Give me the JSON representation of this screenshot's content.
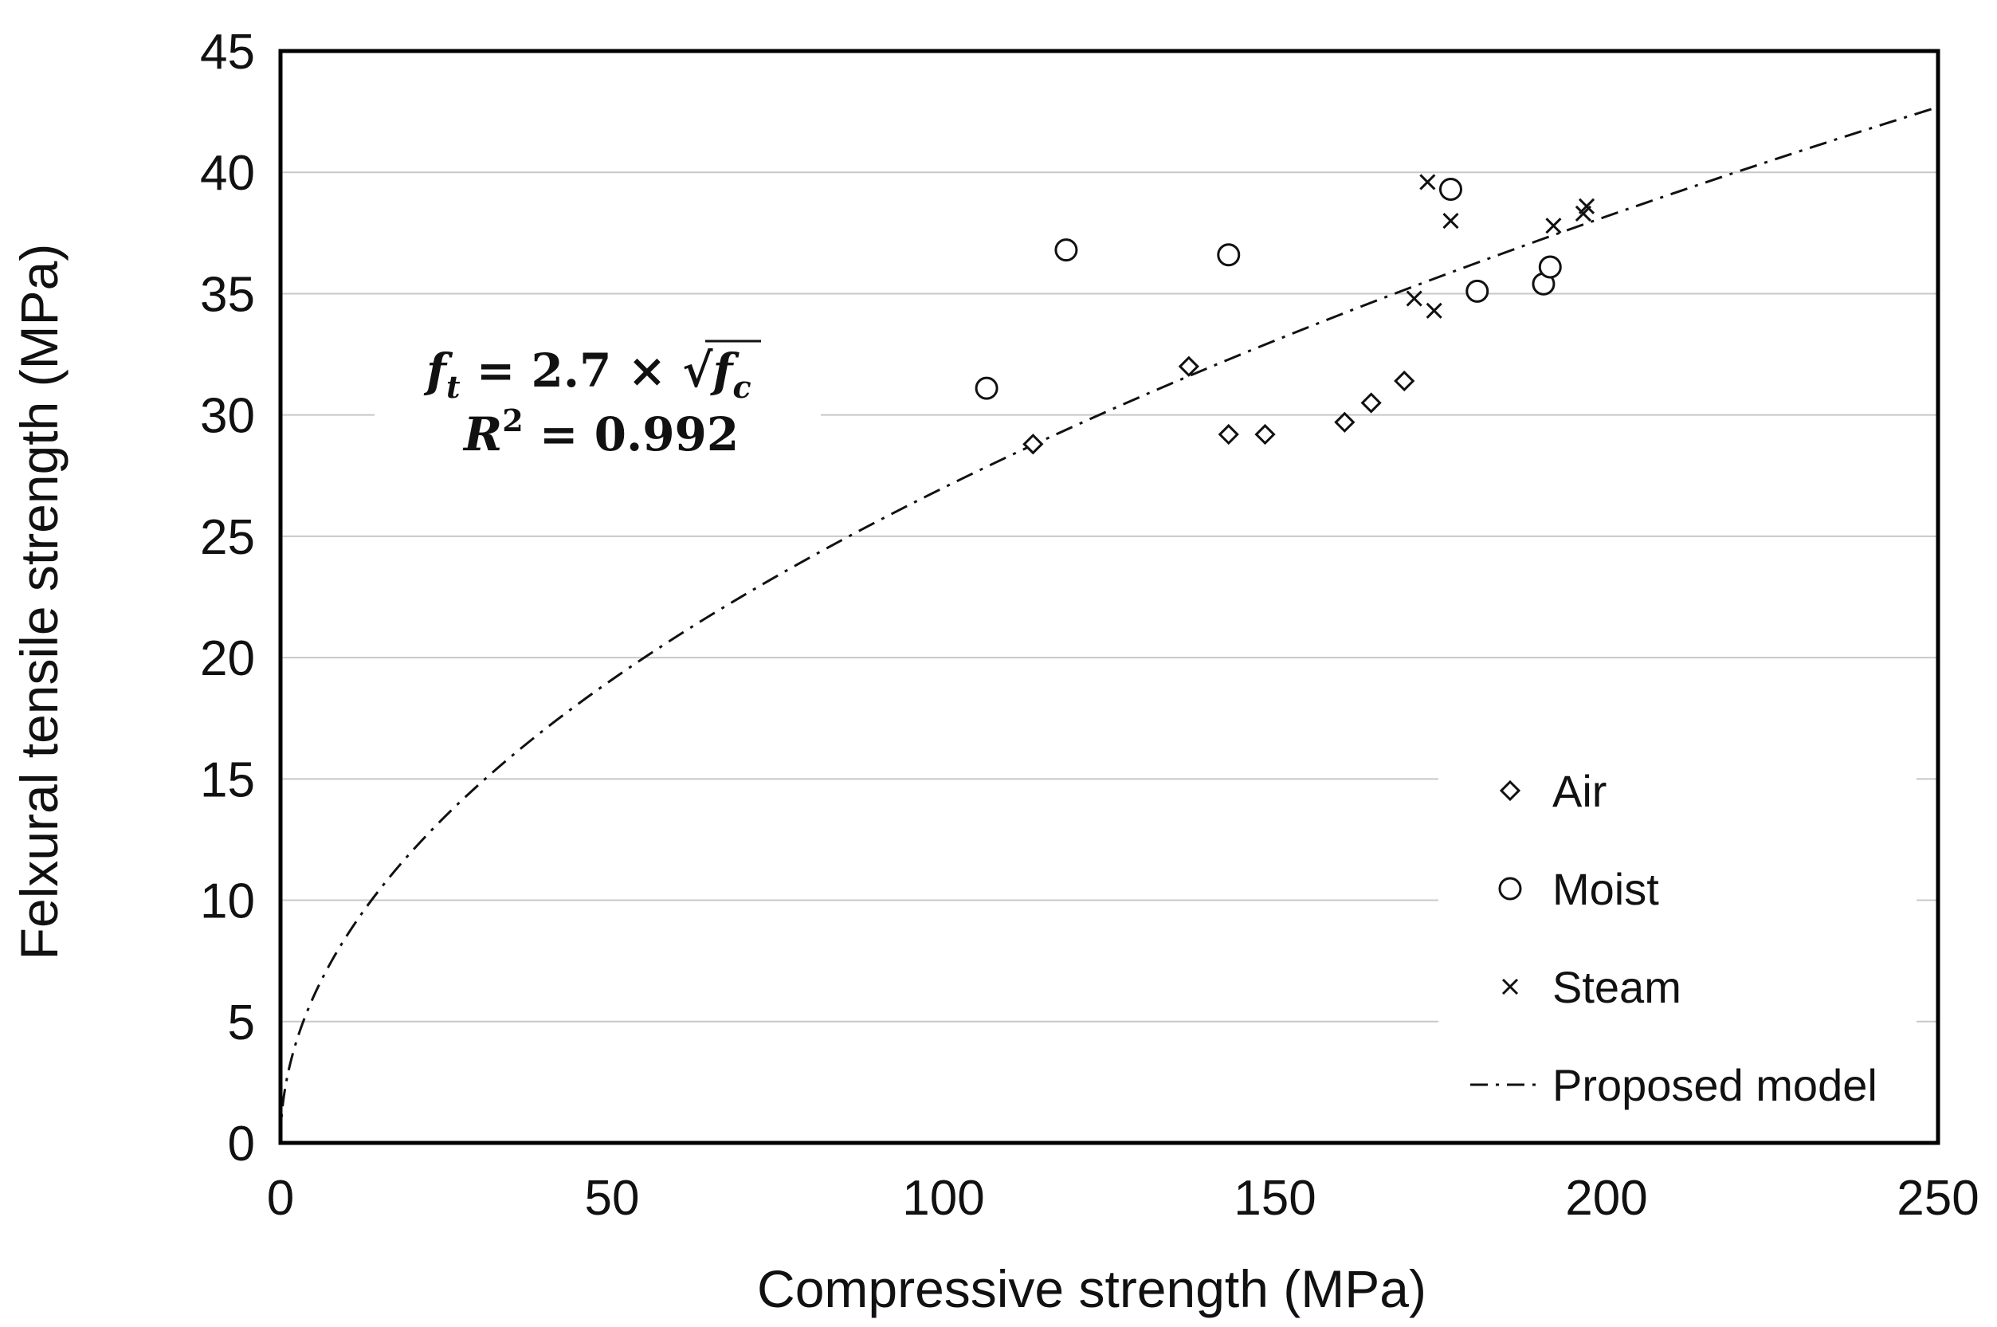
{
  "chart_data": {
    "type": "scatter",
    "title": "",
    "xlabel": "Compressive strength (MPa)",
    "ylabel": "Felxural tensile strength (MPa)",
    "xlim": [
      0,
      250
    ],
    "ylim": [
      0,
      45
    ],
    "xticks": [
      0,
      50,
      100,
      150,
      200,
      250
    ],
    "yticks": [
      0,
      5,
      10,
      15,
      20,
      25,
      30,
      35,
      40,
      45
    ],
    "grid": "horizontal",
    "legend_position": "bottom-right",
    "series": [
      {
        "name": "Air",
        "marker": "diamond",
        "points": [
          [
            113.5,
            28.8
          ],
          [
            137,
            32.0
          ],
          [
            143,
            29.2
          ],
          [
            148.5,
            29.2
          ],
          [
            160.5,
            29.7
          ],
          [
            164.5,
            30.5
          ],
          [
            169.5,
            31.4
          ]
        ]
      },
      {
        "name": "Moist",
        "marker": "circle",
        "points": [
          [
            106.5,
            31.1
          ],
          [
            118.5,
            36.8
          ],
          [
            143,
            36.6
          ],
          [
            176.5,
            39.3
          ],
          [
            180.5,
            35.1
          ],
          [
            190.5,
            35.4
          ],
          [
            191.5,
            36.1
          ]
        ]
      },
      {
        "name": "Steam",
        "marker": "x",
        "points": [
          [
            173,
            39.6
          ],
          [
            176.5,
            38.0
          ],
          [
            171,
            34.8
          ],
          [
            174,
            34.3
          ],
          [
            192,
            37.8
          ],
          [
            196.5,
            38.3
          ],
          [
            197,
            38.6
          ]
        ]
      },
      {
        "name": "Proposed model",
        "line": "dash-dot",
        "equation": "ft = 2.7 × sqrt(fc)",
        "coefficient": 2.7,
        "range": [
          0,
          250
        ]
      }
    ],
    "annotation": {
      "equation_lhs": "f",
      "equation_lhs_sub": "t",
      "equation_eq": " = ",
      "equation_coef": "2.7",
      "equation_times": " × ",
      "equation_rhs": "f",
      "equation_rhs_sub": "c",
      "r2_symbol": "R",
      "r2_sup": "2",
      "r2_value": " = 0.992"
    }
  }
}
